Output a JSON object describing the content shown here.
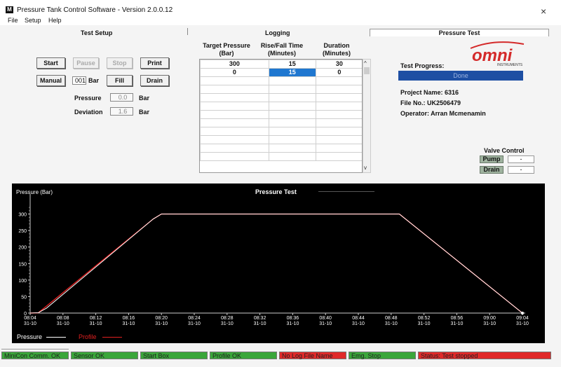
{
  "window": {
    "title": "Pressure Tank Control Software - Version 2.0.0.12",
    "icon_letter": "M",
    "close_glyph": "×"
  },
  "menu": [
    "File",
    "Setup",
    "Help"
  ],
  "sections": {
    "test_setup": "Test Setup",
    "logging": "Logging",
    "pressure_test": "Pressure Test"
  },
  "buttons": {
    "start": "Start",
    "pause": "Pause",
    "stop": "Stop",
    "print": "Print",
    "manual": "Manual",
    "fill": "Fill",
    "drain": "Drain"
  },
  "setpoint": {
    "value": "001",
    "unit": "Bar"
  },
  "readouts": {
    "pressure_label": "Pressure",
    "pressure_value": "0.0",
    "pressure_unit": "Bar",
    "deviation_label": "Deviation",
    "deviation_value": "1.6",
    "deviation_unit": "Bar"
  },
  "grid": {
    "headers": {
      "target": "Target Pressure\n(Bar)",
      "rise": "Rise/Fall Time\n(Minutes)",
      "duration": "Duration\n(Minutes)"
    },
    "rows": [
      [
        "300",
        "15",
        "30"
      ],
      [
        "0",
        "15",
        "0"
      ]
    ],
    "scroll_up": "^",
    "scroll_down": "v"
  },
  "test_progress": {
    "label": "Test Progress:",
    "status": "Done"
  },
  "logo": {
    "text": "omni",
    "subtext": "INSTRUMENTS"
  },
  "project": {
    "name_line": "Project Name: 6316",
    "file_line": "File No.: UK2506479",
    "operator_line": "Operator: Arran Mcmenamin"
  },
  "valve_control": {
    "title": "Valve Control",
    "pump_label": "Pump",
    "pump_value": "-",
    "drain_label": "Drain",
    "drain_value": "-"
  },
  "chart_data": {
    "type": "line",
    "title": "Pressure Test",
    "ylabel": "Pressure (Bar)",
    "ylim": [
      0,
      350
    ],
    "y_ticks": [
      0,
      50,
      100,
      150,
      200,
      250,
      300
    ],
    "x_ticks": [
      {
        "time": "08:04",
        "date": "31-10"
      },
      {
        "time": "08:08",
        "date": "31-10"
      },
      {
        "time": "08:12",
        "date": "31-10"
      },
      {
        "time": "08:16",
        "date": "31-10"
      },
      {
        "time": "08:20",
        "date": "31-10"
      },
      {
        "time": "08:24",
        "date": "31-10"
      },
      {
        "time": "08:28",
        "date": "31-10"
      },
      {
        "time": "08:32",
        "date": "31-10"
      },
      {
        "time": "08:36",
        "date": "31-10"
      },
      {
        "time": "08:40",
        "date": "31-10"
      },
      {
        "time": "08:44",
        "date": "31-10"
      },
      {
        "time": "08:48",
        "date": "31-10"
      },
      {
        "time": "08:52",
        "date": "31-10"
      },
      {
        "time": "08:56",
        "date": "31-10"
      },
      {
        "time": "09:00",
        "date": "31-10"
      },
      {
        "time": "09:04",
        "date": "31-10"
      }
    ],
    "xlim": [
      "08:04",
      "09:04"
    ],
    "series": [
      {
        "name": "Pressure",
        "color": "#ffffff",
        "x": [
          "08:04",
          "08:05",
          "08:06",
          "08:19",
          "08:20",
          "08:49",
          "09:04"
        ],
        "y": [
          0,
          1,
          15,
          285,
          300,
          300,
          0
        ]
      },
      {
        "name": "Profile",
        "color": "#e02020",
        "x": [
          "08:04",
          "08:05",
          "08:19",
          "08:20",
          "08:49",
          "09:04"
        ],
        "y": [
          0,
          1,
          285,
          300,
          300,
          0
        ]
      }
    ],
    "legend_position": "bottom-left"
  },
  "status_bar": [
    {
      "text": "MiniCon Comm. OK",
      "state": "ok"
    },
    {
      "text": "Sensor OK",
      "state": "ok"
    },
    {
      "text": "Start Box",
      "state": "ok"
    },
    {
      "text": "Profile OK",
      "state": "ok"
    },
    {
      "text": "No Log File Name",
      "state": "error"
    },
    {
      "text": "Emg. Stop",
      "state": "ok"
    },
    {
      "text": "Status: Test stopped",
      "state": "error"
    }
  ]
}
